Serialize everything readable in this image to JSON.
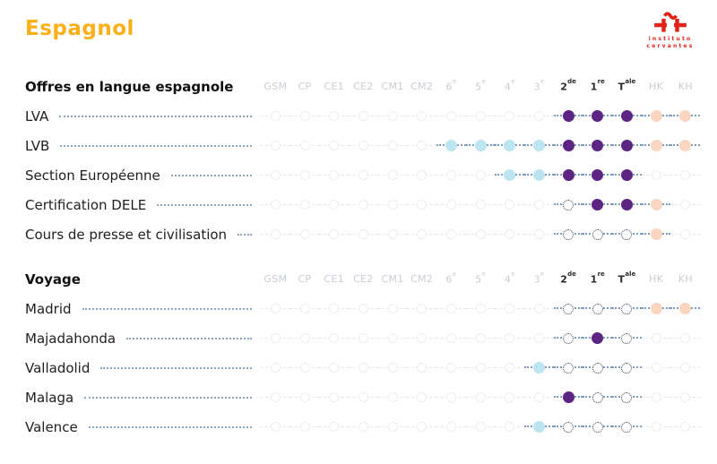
{
  "page": {
    "title": "Espagnol",
    "title_color": "#FBB017"
  },
  "logo": {
    "line1": "instituto",
    "line2": "cervantes",
    "color": "#E2231A"
  },
  "colors": {
    "accent_title": "#FBB017",
    "logo_red": "#E2231A",
    "purple": "#5C2483",
    "light_blue": "#BDE4F1",
    "peach": "#FAD6C1",
    "dashed_dot_border": "#3E3E55",
    "empty_dot_border": "#EDEEF0",
    "leader_line": "#8AA7C2",
    "header_light": "#C8CDD4",
    "header_strong": "#2B2B2B"
  },
  "chart_data": {
    "type": "heatmap",
    "subtype": "dot-matrix",
    "title": "Espagnol",
    "columns": [
      {
        "t": "GSM"
      },
      {
        "t": "CP"
      },
      {
        "t": "CE1"
      },
      {
        "t": "CE2"
      },
      {
        "t": "CM1"
      },
      {
        "t": "CM2"
      },
      {
        "t": "6",
        "s": "e"
      },
      {
        "t": "5",
        "s": "e"
      },
      {
        "t": "4",
        "s": "e"
      },
      {
        "t": "3",
        "s": "e"
      },
      {
        "t": "2",
        "s": "de",
        "strong": true
      },
      {
        "t": "1",
        "s": "re",
        "strong": true
      },
      {
        "t": "T",
        "s": "ale",
        "strong": true
      },
      {
        "t": "HK"
      },
      {
        "t": "KH"
      }
    ],
    "cell_states": [
      "none",
      "blue",
      "purple",
      "peach",
      "dashed"
    ],
    "sections": [
      {
        "title": "Offres en langue espagnole",
        "rows": [
          {
            "label": "LVA",
            "cells": [
              "none",
              "none",
              "none",
              "none",
              "none",
              "none",
              "none",
              "none",
              "none",
              "none",
              "purple",
              "purple",
              "purple",
              "peach",
              "peach"
            ]
          },
          {
            "label": "LVB",
            "cells": [
              "none",
              "none",
              "none",
              "none",
              "none",
              "none",
              "blue",
              "blue",
              "blue",
              "blue",
              "purple",
              "purple",
              "purple",
              "peach",
              "peach"
            ]
          },
          {
            "label": "Section Européenne",
            "cells": [
              "none",
              "none",
              "none",
              "none",
              "none",
              "none",
              "none",
              "none",
              "blue",
              "blue",
              "purple",
              "purple",
              "purple",
              "none",
              "none"
            ]
          },
          {
            "label": "Certification DELE",
            "cells": [
              "none",
              "none",
              "none",
              "none",
              "none",
              "none",
              "none",
              "none",
              "none",
              "none",
              "dashed",
              "purple",
              "purple",
              "peach",
              "none"
            ]
          },
          {
            "label": "Cours de presse et civilisation",
            "cells": [
              "none",
              "none",
              "none",
              "none",
              "none",
              "none",
              "none",
              "none",
              "none",
              "none",
              "dashed",
              "dashed",
              "dashed",
              "peach",
              "none"
            ]
          }
        ]
      },
      {
        "title": "Voyage",
        "rows": [
          {
            "label": "Madrid",
            "cells": [
              "none",
              "none",
              "none",
              "none",
              "none",
              "none",
              "none",
              "none",
              "none",
              "none",
              "dashed",
              "dashed",
              "dashed",
              "peach",
              "peach"
            ]
          },
          {
            "label": "Majadahonda",
            "cells": [
              "none",
              "none",
              "none",
              "none",
              "none",
              "none",
              "none",
              "none",
              "none",
              "none",
              "dashed",
              "purple",
              "dashed",
              "none",
              "none"
            ]
          },
          {
            "label": "Valladolid",
            "cells": [
              "none",
              "none",
              "none",
              "none",
              "none",
              "none",
              "none",
              "none",
              "none",
              "blue",
              "dashed",
              "dashed",
              "dashed",
              "none",
              "none"
            ]
          },
          {
            "label": "Malaga",
            "cells": [
              "none",
              "none",
              "none",
              "none",
              "none",
              "none",
              "none",
              "none",
              "none",
              "none",
              "purple",
              "dashed",
              "dashed",
              "none",
              "none"
            ]
          },
          {
            "label": "Valence",
            "cells": [
              "none",
              "none",
              "none",
              "none",
              "none",
              "none",
              "none",
              "none",
              "none",
              "blue",
              "dashed",
              "dashed",
              "dashed",
              "none",
              "none"
            ]
          }
        ]
      }
    ]
  }
}
